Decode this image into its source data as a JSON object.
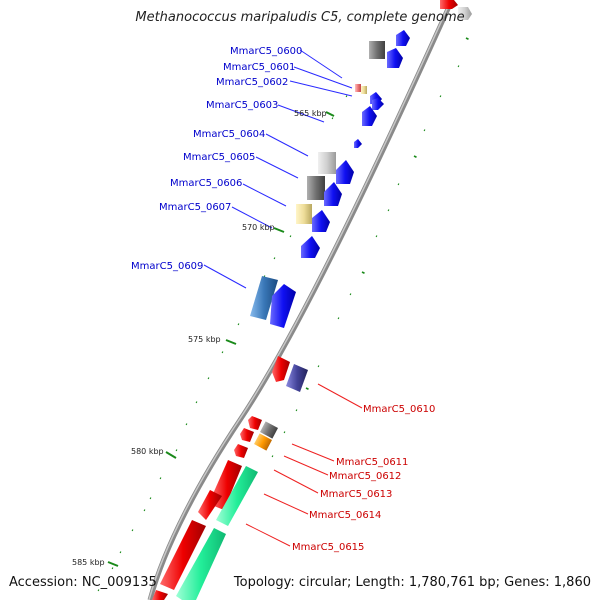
{
  "title": "Methanococcus maripaludis C5, complete genome",
  "footer": {
    "accession": "Accession: NC_009135",
    "topology": "Topology: circular; Length: 1,780,761 bp; Genes: 1,860"
  },
  "kbp_labels": [
    "565 kbp",
    "570 kbp",
    "575 kbp",
    "580 kbp",
    "585 kbp"
  ],
  "gene_labels_forward": [
    "MmarC5_0600",
    "MmarC5_0601",
    "MmarC5_0602",
    "MmarC5_0603",
    "MmarC5_0604",
    "MmarC5_0605",
    "MmarC5_0606",
    "MmarC5_0607",
    "MmarC5_0609"
  ],
  "gene_labels_reverse": [
    "MmarC5_0610",
    "MmarC5_0611",
    "MmarC5_0612",
    "MmarC5_0613",
    "MmarC5_0614",
    "MmarC5_0615"
  ],
  "colors": {
    "forward_label": "#0000cc",
    "reverse_label": "#cc0000",
    "forward_gene": "#0a0af0",
    "reverse_gene": "#ee0000",
    "rna_gene": "#22ee99",
    "backbone": "#888888",
    "tick": "#1a8a1a"
  }
}
